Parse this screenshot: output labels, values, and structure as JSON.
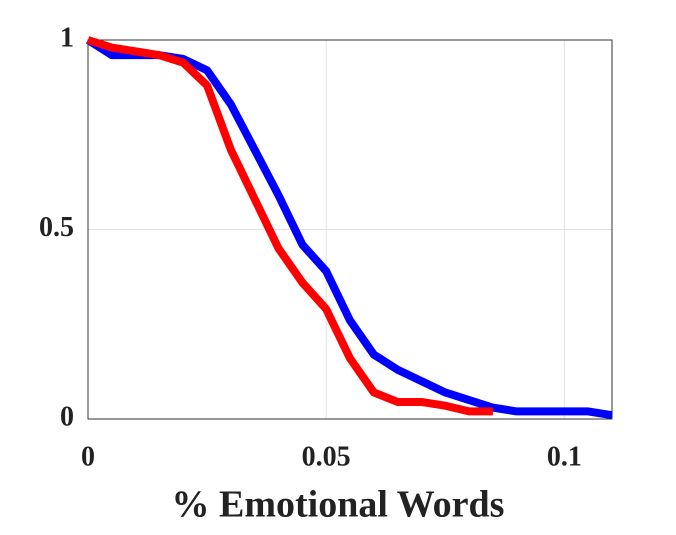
{
  "chart_data": {
    "type": "line",
    "xlabel": "% Emotional Words",
    "x": [
      0,
      0.005,
      0.01,
      0.015,
      0.02,
      0.025,
      0.03,
      0.035,
      0.04,
      0.045,
      0.05,
      0.055,
      0.06,
      0.065,
      0.07,
      0.075,
      0.08,
      0.085,
      0.09,
      0.095,
      0.1,
      0.105,
      0.11
    ],
    "series": [
      {
        "color": "#0000ff",
        "values": [
          1,
          0.96,
          0.96,
          0.96,
          0.95,
          0.92,
          0.83,
          0.71,
          0.59,
          0.46,
          0.39,
          0.26,
          0.17,
          0.13,
          0.1,
          0.07,
          0.05,
          0.03,
          0.02,
          0.02,
          0.02,
          0.02,
          0.01
        ]
      },
      {
        "color": "#ff0000",
        "values": [
          1,
          0.98,
          0.97,
          0.96,
          0.94,
          0.88,
          0.71,
          0.58,
          0.45,
          0.36,
          0.29,
          0.16,
          0.07,
          0.045,
          0.045,
          0.035,
          0.02,
          0.02,
          null,
          null,
          null,
          null,
          null
        ]
      }
    ],
    "xlim": [
      0,
      0.11
    ],
    "ylim": [
      0,
      1
    ],
    "xticks": [
      0,
      0.05,
      0.1
    ],
    "yticks": [
      0,
      0.5,
      1
    ],
    "grid": true
  }
}
